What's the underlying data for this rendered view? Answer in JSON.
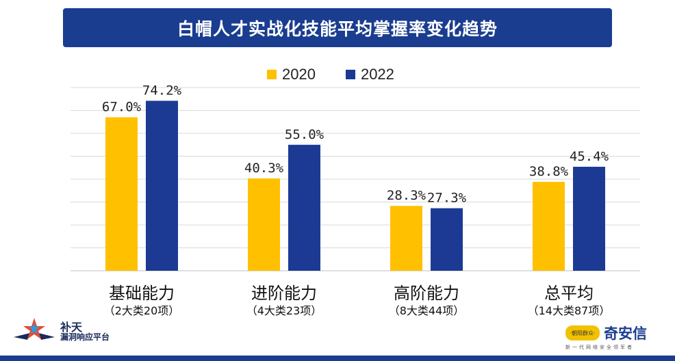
{
  "chart_data": {
    "type": "bar",
    "title": "白帽人才实战化技能平均掌握率变化趋势",
    "categories": [
      "基础能力",
      "进阶能力",
      "高阶能力",
      "总平均"
    ],
    "category_subtitles": [
      "（2大类20项）",
      "（4大类23项）",
      "（8大类44项）",
      "（14大类87项）"
    ],
    "series": [
      {
        "name": "2020",
        "values": [
          67.0,
          40.3,
          28.3,
          38.8
        ],
        "labels": [
          "67.0%",
          "40.3%",
          "28.3%",
          "38.8%"
        ],
        "color": "#ffc000"
      },
      {
        "name": "2022",
        "values": [
          74.2,
          55.0,
          27.3,
          45.4
        ],
        "labels": [
          "74.2%",
          "55.0%",
          "27.3%",
          "45.4%"
        ],
        "color": "#1c3a94"
      }
    ],
    "ylim": [
      0,
      80
    ],
    "grid": true,
    "legend_position": "top-center"
  },
  "logos": {
    "left_name": "补天",
    "left_sub": "漏洞响应平台",
    "right_mascot": "·朝阳群众·",
    "right_name": "奇安信",
    "right_slogan": "新一代网络安全领军者"
  }
}
